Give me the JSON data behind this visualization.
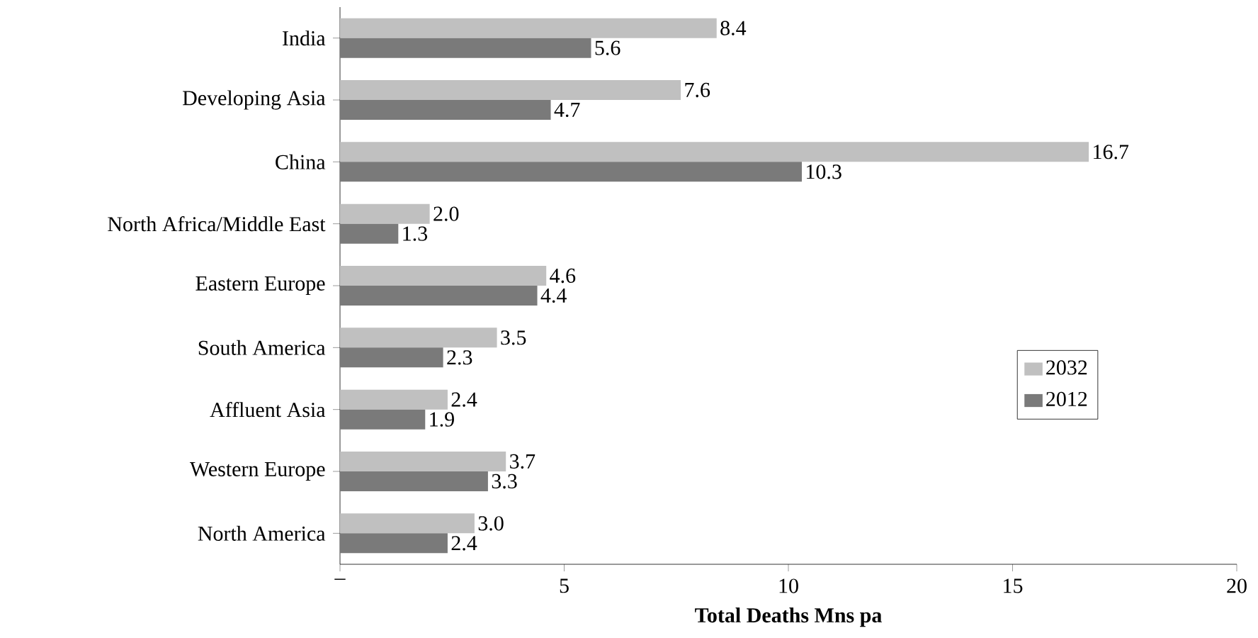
{
  "chart_data": {
    "type": "bar",
    "orientation": "horizontal",
    "categories": [
      "India",
      "Developing Asia",
      "China",
      "North Africa/Middle East",
      "Eastern Europe",
      "South America",
      "Affluent Asia",
      "Western Europe",
      "North America"
    ],
    "series": [
      {
        "name": "2032",
        "color": "#c0c0c0",
        "values": [
          8.4,
          7.6,
          16.7,
          2.0,
          4.6,
          3.5,
          2.4,
          3.7,
          3.0
        ],
        "value_labels": [
          "8.4",
          "7.6",
          "16.7",
          "2.0",
          "4.6",
          "3.5",
          "2.4",
          "3.7",
          "3.0"
        ]
      },
      {
        "name": "2012",
        "color": "#7a7a7a",
        "values": [
          5.6,
          4.7,
          10.3,
          1.3,
          4.4,
          2.3,
          1.9,
          3.3,
          2.4
        ],
        "value_labels": [
          "5.6",
          "4.7",
          "10.3",
          "1.3",
          "4.4",
          "2.3",
          "1.9",
          "3.3",
          "2.4"
        ]
      }
    ],
    "xlim": [
      0,
      20
    ],
    "xticks": [
      {
        "value": 0,
        "label": "–"
      },
      5,
      10,
      15,
      20
    ],
    "xlabel": "Total Deaths Mns pa",
    "legend": "right",
    "grid": false
  }
}
